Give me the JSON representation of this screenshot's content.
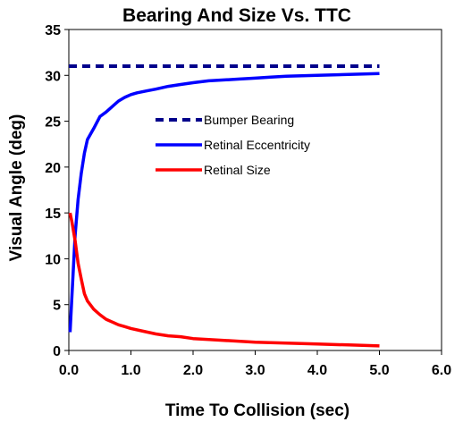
{
  "chart_data": {
    "type": "line",
    "title": "Bearing And Size Vs. TTC",
    "xlabel": "Time To Collision (sec)",
    "ylabel": "Visual Angle (deg)",
    "xlim": [
      0,
      6
    ],
    "ylim": [
      0,
      35
    ],
    "xticks": [
      0,
      1,
      2,
      3,
      4,
      5,
      6
    ],
    "xtick_labels": [
      "0.0",
      "1.0",
      "2.0",
      "3.0",
      "4.0",
      "5.0",
      "6.0"
    ],
    "yticks": [
      0,
      5,
      10,
      15,
      20,
      25,
      30,
      35
    ],
    "ytick_labels": [
      "0",
      "5",
      "10",
      "15",
      "20",
      "25",
      "30",
      "35"
    ],
    "grid": false,
    "legend_position": "center",
    "series": [
      {
        "name": "Bumper Bearing",
        "color": "#00008B",
        "style": "dashed",
        "x": [
          0.0,
          5.0
        ],
        "y": [
          31.0,
          31.0
        ]
      },
      {
        "name": "Retinal Eccentricity",
        "color": "#0000FF",
        "style": "solid",
        "x": [
          0.02,
          0.05,
          0.1,
          0.15,
          0.2,
          0.25,
          0.3,
          0.4,
          0.5,
          0.6,
          0.7,
          0.8,
          0.9,
          1.0,
          1.1,
          1.25,
          1.4,
          1.6,
          1.8,
          2.0,
          2.25,
          2.5,
          2.75,
          3.0,
          3.25,
          3.5,
          4.0,
          4.5,
          5.0
        ],
        "y": [
          2.0,
          6.0,
          12.5,
          16.5,
          19.3,
          21.5,
          23.0,
          24.2,
          25.5,
          26.0,
          26.6,
          27.2,
          27.6,
          27.9,
          28.1,
          28.3,
          28.5,
          28.8,
          29.0,
          29.2,
          29.4,
          29.5,
          29.6,
          29.7,
          29.8,
          29.9,
          30.0,
          30.1,
          30.2
        ]
      },
      {
        "name": "Retinal Size",
        "color": "#FF0000",
        "style": "solid",
        "x": [
          0.02,
          0.05,
          0.1,
          0.15,
          0.2,
          0.25,
          0.3,
          0.4,
          0.5,
          0.6,
          0.7,
          0.8,
          0.9,
          1.0,
          1.2,
          1.4,
          1.6,
          1.8,
          2.0,
          2.5,
          3.0,
          3.5,
          4.0,
          4.5,
          5.0
        ],
        "y": [
          15.0,
          14.0,
          12.0,
          9.5,
          7.8,
          6.2,
          5.4,
          4.5,
          3.9,
          3.4,
          3.1,
          2.8,
          2.6,
          2.4,
          2.1,
          1.8,
          1.6,
          1.5,
          1.3,
          1.1,
          0.9,
          0.8,
          0.7,
          0.6,
          0.5
        ]
      }
    ]
  }
}
